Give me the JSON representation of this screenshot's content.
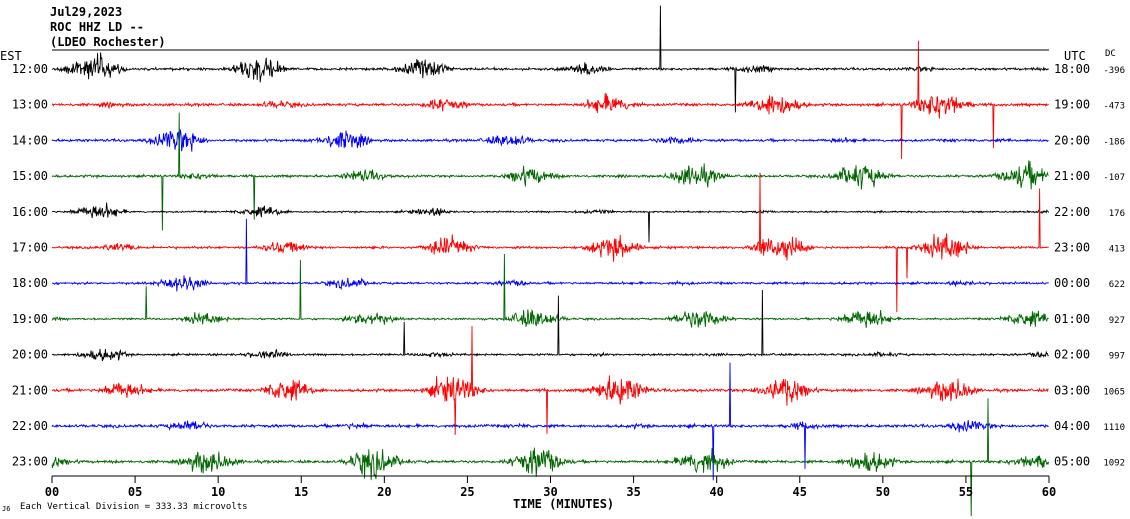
{
  "header": {
    "date": "Jul29,2023",
    "station": "ROC HHZ LD --",
    "network": "(LDEO Rochester)"
  },
  "chart_data": {
    "type": "line",
    "left_timezone": "EST",
    "right_timezone": "UTC",
    "dc_header": "DC",
    "xlabel": "TIME (MINUTES)",
    "xlim": [
      0,
      60
    ],
    "x_ticks": [
      "00",
      "05",
      "10",
      "15",
      "20",
      "25",
      "30",
      "35",
      "40",
      "45",
      "50",
      "55",
      "60"
    ],
    "footer": "Each Vertical Division = 333.33 microvolts",
    "trace_colors": [
      "#000000",
      "#ff0000",
      "#0000ff",
      "#006600"
    ],
    "rows": [
      {
        "left": "12:00",
        "right": "18:00",
        "dc": "-396",
        "level": 0.75
      },
      {
        "left": "13:00",
        "right": "19:00",
        "dc": "-473",
        "level": 0.85
      },
      {
        "left": "14:00",
        "right": "20:00",
        "dc": "-186",
        "level": 0.8
      },
      {
        "left": "15:00",
        "right": "21:00",
        "dc": "-107",
        "level": 0.75
      },
      {
        "left": "16:00",
        "right": "22:00",
        "dc": "176",
        "level": 0.5
      },
      {
        "left": "17:00",
        "right": "23:00",
        "dc": "413",
        "level": 0.75
      },
      {
        "left": "18:00",
        "right": "00:00",
        "dc": "622",
        "level": 0.7
      },
      {
        "left": "19:00",
        "right": "01:00",
        "dc": "927",
        "level": 0.6
      },
      {
        "left": "20:00",
        "right": "02:00",
        "dc": "997",
        "level": 0.65
      },
      {
        "left": "21:00",
        "right": "03:00",
        "dc": "1065",
        "level": 0.9
      },
      {
        "left": "22:00",
        "right": "04:00",
        "dc": "1110",
        "level": 0.9
      },
      {
        "left": "23:00",
        "right": "05:00",
        "dc": "1092",
        "level": 0.85
      }
    ]
  }
}
